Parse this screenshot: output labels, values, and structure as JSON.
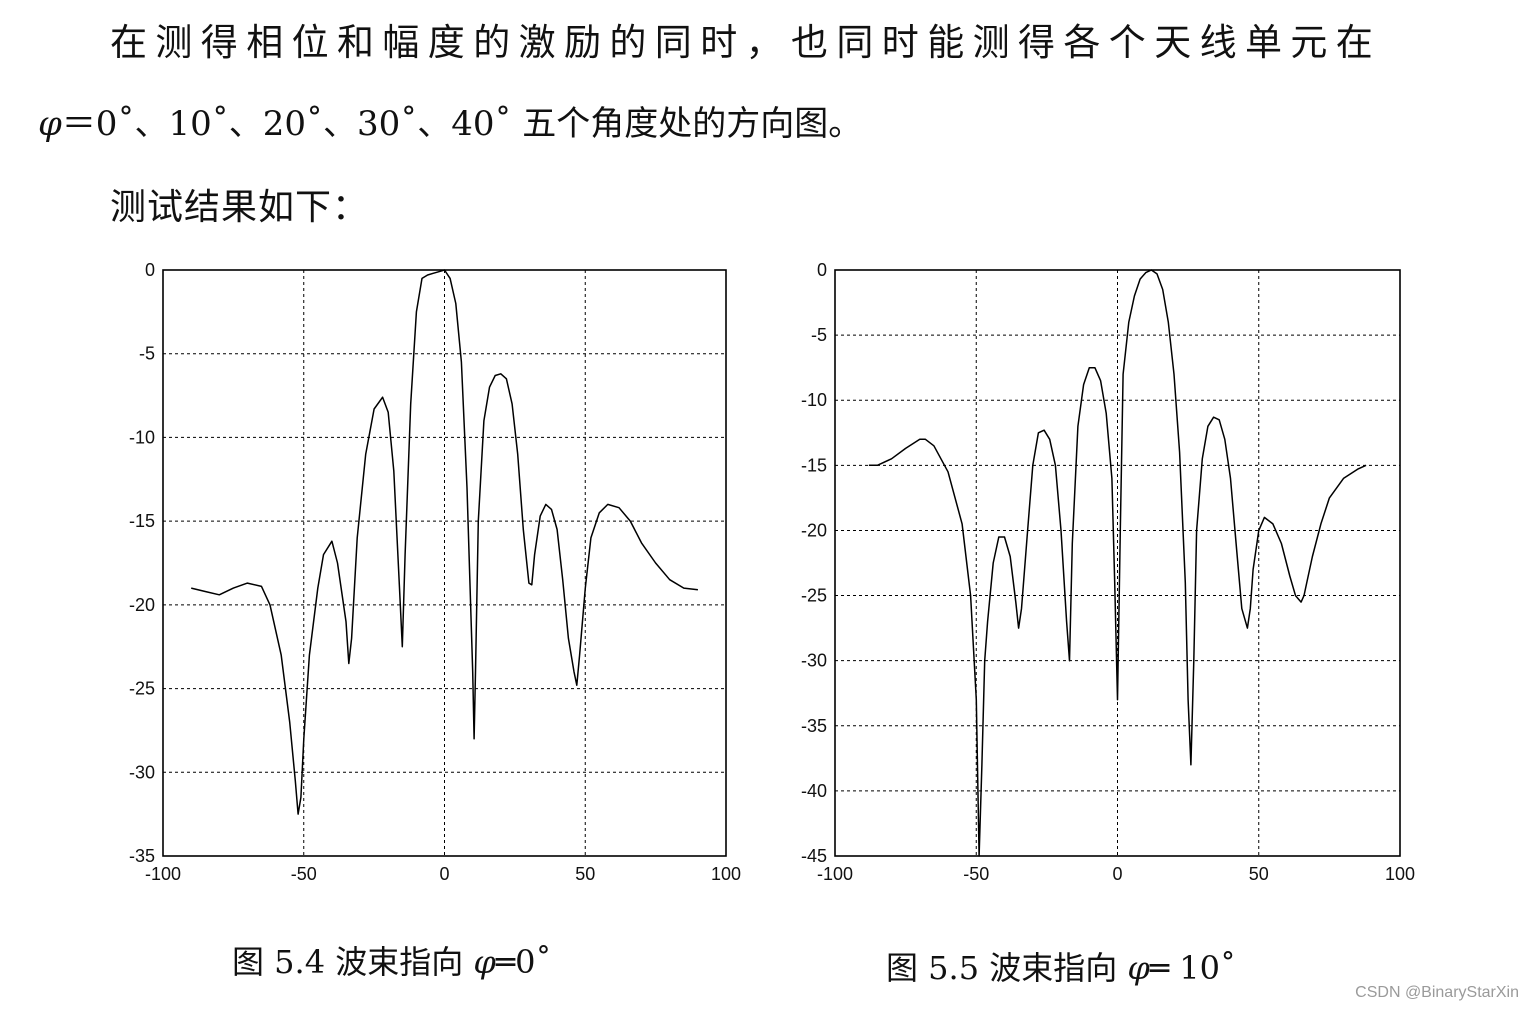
{
  "text": {
    "line1": "在测得相位和幅度的激励的同时，也同时能测得各个天线单元在",
    "line2_phi": "φ",
    "line2_rest": "＝0˚、10˚、20˚、30˚、40˚ 五个角度处的方向图。",
    "line3": "测试结果如下："
  },
  "captions": {
    "fig1_prefix": "图 5.4  波束指向 ",
    "fig1_phi": "φ",
    "fig1_suffix": "═0˚",
    "fig2_prefix": "图 5.5  波束指向 ",
    "fig2_phi": "φ",
    "fig2_suffix": "═ 10˚"
  },
  "watermark": "CSDN @BinaryStarXin",
  "colors": {
    "line": "#000000",
    "grid": "#000000"
  },
  "chart_data": [
    {
      "type": "line",
      "xlim": [
        -100,
        100
      ],
      "ylim": [
        -35,
        0
      ],
      "grid": true,
      "xticks": [
        -100,
        -50,
        0,
        50,
        100
      ],
      "yticks": [
        0,
        -5,
        -10,
        -15,
        -20,
        -25,
        -30,
        -35
      ],
      "series": [
        {
          "x": [
            -90,
            -85,
            -80,
            -75,
            -70,
            -65,
            -62,
            -58,
            -55,
            -53,
            -52,
            -51,
            -50,
            -48,
            -45,
            -43,
            -40,
            -38,
            -35,
            -34,
            -33,
            -31,
            -28,
            -25,
            -22,
            -20,
            -18,
            -16,
            -15,
            -14,
            -12,
            -10,
            -8,
            -6,
            -4,
            -2,
            0,
            2,
            4,
            6,
            8,
            10,
            10.5,
            11,
            12,
            14,
            16,
            18,
            20,
            22,
            24,
            26,
            28,
            30,
            31,
            32,
            34,
            36,
            38,
            40,
            42,
            44,
            46,
            47,
            48,
            50,
            52,
            55,
            58,
            62,
            66,
            70,
            75,
            80,
            85,
            90
          ],
          "y": [
            -19,
            -19.2,
            -19.4,
            -19,
            -18.7,
            -18.9,
            -20,
            -23,
            -27,
            -30.5,
            -32.5,
            -31.5,
            -28,
            -23,
            -19,
            -17,
            -16.2,
            -17.5,
            -21,
            -23.5,
            -22,
            -16,
            -11,
            -8.3,
            -7.6,
            -8.5,
            -12,
            -19,
            -22.5,
            -17,
            -8,
            -2.5,
            -0.5,
            -0.3,
            -0.2,
            -0.1,
            0,
            -0.5,
            -2,
            -5.5,
            -13,
            -24,
            -28,
            -24,
            -15,
            -9,
            -7,
            -6.3,
            -6.2,
            -6.5,
            -8,
            -11,
            -15.5,
            -18.7,
            -18.8,
            -17,
            -14.7,
            -14,
            -14.3,
            -15.5,
            -18.5,
            -22,
            -24,
            -24.8,
            -23,
            -19,
            -16,
            -14.5,
            -14,
            -14.2,
            -15,
            -16.3,
            -17.5,
            -18.5,
            -19,
            -19.1
          ]
        }
      ]
    },
    {
      "type": "line",
      "xlim": [
        -100,
        100
      ],
      "ylim": [
        -45,
        0
      ],
      "grid": true,
      "xticks": [
        -100,
        -50,
        0,
        50,
        100
      ],
      "yticks": [
        0,
        -5,
        -10,
        -15,
        -20,
        -25,
        -30,
        -35,
        -40,
        -45
      ],
      "series": [
        {
          "x": [
            -88,
            -85,
            -80,
            -75,
            -70,
            -68,
            -65,
            -60,
            -55,
            -52,
            -50,
            -49,
            -48,
            -47,
            -46,
            -44,
            -42,
            -40,
            -38,
            -36,
            -35,
            -34,
            -32,
            -30,
            -28,
            -26,
            -24,
            -22,
            -20,
            -18,
            -17,
            -16,
            -14,
            -12,
            -10,
            -8,
            -6,
            -4,
            -2,
            -1,
            0,
            1,
            2,
            4,
            6,
            8,
            10,
            12,
            14,
            16,
            18,
            20,
            22,
            24,
            25,
            26,
            27,
            28,
            30,
            32,
            34,
            36,
            38,
            40,
            42,
            44,
            46,
            47,
            48,
            50,
            52,
            55,
            58,
            61,
            63,
            65,
            66,
            67,
            69,
            72,
            75,
            80,
            85,
            88
          ],
          "y": [
            -15,
            -15,
            -14.5,
            -13.7,
            -13,
            -13,
            -13.5,
            -15.5,
            -19.5,
            -25,
            -33,
            -45,
            -38,
            -30,
            -27,
            -22.5,
            -20.5,
            -20.5,
            -22,
            -25.5,
            -27.5,
            -26,
            -20.5,
            -15,
            -12.5,
            -12.3,
            -13,
            -15,
            -20,
            -27,
            -30,
            -21,
            -12,
            -8.8,
            -7.5,
            -7.5,
            -8.5,
            -11,
            -16,
            -24,
            -33,
            -20,
            -8,
            -4,
            -2,
            -0.7,
            -0.2,
            0,
            -0.3,
            -1.5,
            -4,
            -8,
            -14,
            -24,
            -33,
            -38,
            -30,
            -20,
            -14.5,
            -12,
            -11.3,
            -11.5,
            -13,
            -16,
            -21,
            -26,
            -27.5,
            -26,
            -23,
            -20,
            -19,
            -19.5,
            -21,
            -23.5,
            -25,
            -25.5,
            -25,
            -24,
            -22,
            -19.5,
            -17.5,
            -16,
            -15.3,
            -15
          ]
        }
      ]
    }
  ]
}
